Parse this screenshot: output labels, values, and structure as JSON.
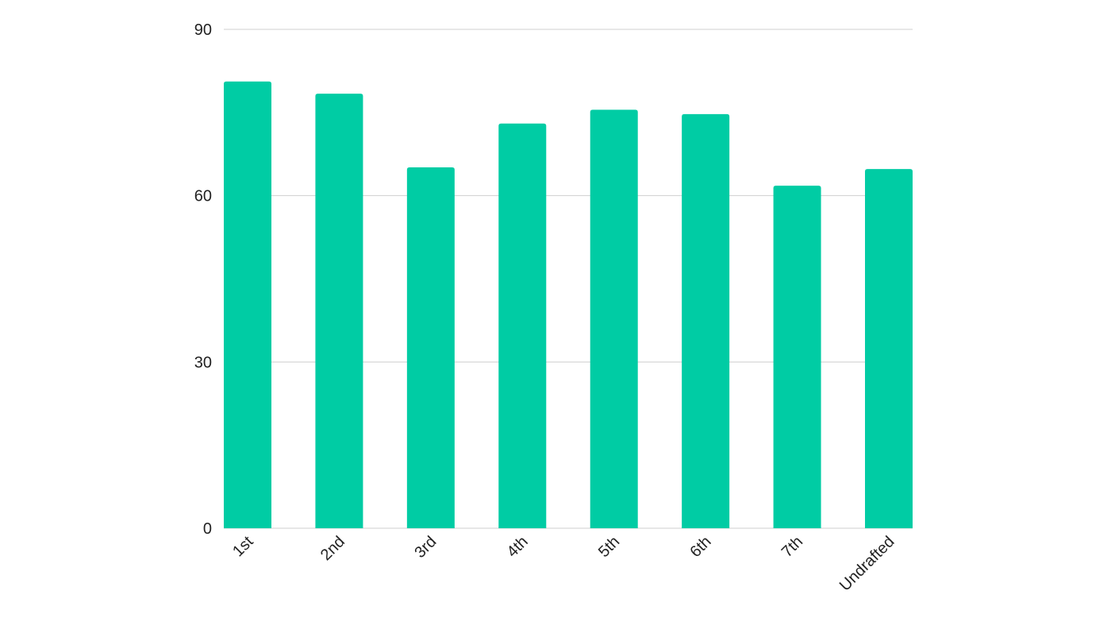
{
  "chart_data": {
    "type": "bar",
    "categories": [
      "1st",
      "2nd",
      "3rd",
      "4th",
      "5th",
      "6th",
      "7th",
      "Undrafted"
    ],
    "values": [
      80.6,
      78.4,
      65.1,
      73.0,
      75.5,
      74.7,
      61.8,
      64.8
    ],
    "color": "#00cca4",
    "ylim": [
      0,
      90
    ],
    "yticks": [
      0,
      30,
      60,
      90
    ],
    "grid": true
  }
}
